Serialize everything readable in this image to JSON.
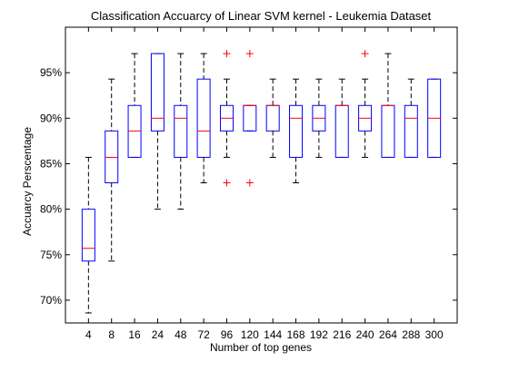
{
  "chart_data": {
    "type": "box",
    "title": "Classification Accuarcy of Linear SVM kernel - Leukemia Dataset",
    "xlabel": "Number of top genes",
    "ylabel": "Accuarcy Perscentage",
    "ylim": [
      67.5,
      100
    ],
    "yticks": [
      70,
      75,
      80,
      85,
      90,
      95
    ],
    "ytick_labels": [
      "70%",
      "75%",
      "80%",
      "85%",
      "90%",
      "95%"
    ],
    "grid": false,
    "colors": {
      "box": "#0000ff",
      "median": "#ff0000",
      "whisker": "#000000",
      "outlier": "#ff0000",
      "axes": "#000000"
    },
    "categories": [
      "4",
      "8",
      "16",
      "24",
      "48",
      "72",
      "96",
      "120",
      "144",
      "168",
      "192",
      "216",
      "240",
      "264",
      "288",
      "300"
    ],
    "boxes": [
      {
        "whisker_low": 68.6,
        "q1": 74.3,
        "median": 75.7,
        "q3": 80.0,
        "whisker_high": 85.7,
        "outliers": []
      },
      {
        "whisker_low": 74.3,
        "q1": 82.9,
        "median": 85.7,
        "q3": 88.6,
        "whisker_high": 94.3,
        "outliers": []
      },
      {
        "whisker_low": 85.7,
        "q1": 85.7,
        "median": 88.6,
        "q3": 91.4,
        "whisker_high": 97.1,
        "outliers": []
      },
      {
        "whisker_low": 80.0,
        "q1": 88.6,
        "median": 90.0,
        "q3": 97.1,
        "whisker_high": 97.1,
        "outliers": []
      },
      {
        "whisker_low": 80.0,
        "q1": 85.7,
        "median": 90.0,
        "q3": 91.4,
        "whisker_high": 97.1,
        "outliers": []
      },
      {
        "whisker_low": 82.9,
        "q1": 85.7,
        "median": 88.6,
        "q3": 94.3,
        "whisker_high": 97.1,
        "outliers": []
      },
      {
        "whisker_low": 85.7,
        "q1": 88.6,
        "median": 90.0,
        "q3": 91.4,
        "whisker_high": 94.3,
        "outliers": [
          97.1,
          82.9
        ]
      },
      {
        "whisker_low": 88.6,
        "q1": 88.6,
        "median": 91.4,
        "q3": 91.4,
        "whisker_high": 91.4,
        "outliers": [
          97.1,
          82.9
        ]
      },
      {
        "whisker_low": 85.7,
        "q1": 88.6,
        "median": 91.4,
        "q3": 91.4,
        "whisker_high": 94.3,
        "outliers": []
      },
      {
        "whisker_low": 82.9,
        "q1": 85.7,
        "median": 90.0,
        "q3": 91.4,
        "whisker_high": 94.3,
        "outliers": []
      },
      {
        "whisker_low": 85.7,
        "q1": 88.6,
        "median": 90.0,
        "q3": 91.4,
        "whisker_high": 94.3,
        "outliers": []
      },
      {
        "whisker_low": 85.7,
        "q1": 85.7,
        "median": 91.4,
        "q3": 91.4,
        "whisker_high": 94.3,
        "outliers": []
      },
      {
        "whisker_low": 85.7,
        "q1": 88.6,
        "median": 90.0,
        "q3": 91.4,
        "whisker_high": 94.3,
        "outliers": [
          97.1
        ]
      },
      {
        "whisker_low": 85.7,
        "q1": 85.7,
        "median": 91.4,
        "q3": 91.4,
        "whisker_high": 97.1,
        "outliers": []
      },
      {
        "whisker_low": 85.7,
        "q1": 85.7,
        "median": 90.0,
        "q3": 91.4,
        "whisker_high": 94.3,
        "outliers": []
      },
      {
        "whisker_low": 85.7,
        "q1": 85.7,
        "median": 90.0,
        "q3": 94.3,
        "whisker_high": 94.3,
        "outliers": []
      }
    ]
  }
}
